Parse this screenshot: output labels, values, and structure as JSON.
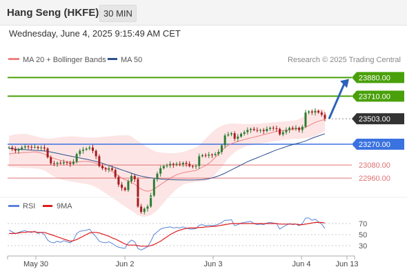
{
  "header": {
    "title": "Hang Seng (HKFE)",
    "timeframe": "30 MIN",
    "datetime": "Wednesday, June 4, 2025 9:15:49 AM CET"
  },
  "legend": {
    "ma20": "MA 20 + Bollinger Bands",
    "ma50": "MA 50",
    "credit": "Research © 2025 Trading Central",
    "rsi": "RSI",
    "rsi_ma": "9MA"
  },
  "colors": {
    "up": "#2e7d32",
    "down": "#a61c1c",
    "ma20": "#f08080",
    "ma50": "#2b4f8c",
    "band": "#fde0e0",
    "target": "#4aa00a",
    "pivot": "#3a72e0",
    "support": "#e07070",
    "current": "#333333",
    "arrow": "#2b63b8",
    "rsi": "#5b82d8",
    "rsi_ma": "#dd1c1c"
  },
  "chart_data": [
    {
      "type": "candlestick",
      "ylim": [
        22790,
        23990
      ],
      "x_ticks": [
        "May 30",
        "Jun 2",
        "Jun 3",
        "Jun 4",
        "Jun 13"
      ],
      "levels": [
        {
          "value": 23880,
          "label": "23880.00",
          "kind": "target"
        },
        {
          "value": 23710,
          "label": "23710.00",
          "kind": "target"
        },
        {
          "value": 23503,
          "label": "23503.00",
          "kind": "current"
        },
        {
          "value": 23270,
          "label": "23270.00",
          "kind": "pivot"
        },
        {
          "value": 23080,
          "label": "23080.00",
          "kind": "support"
        },
        {
          "value": 22960,
          "label": "22960.00",
          "kind": "support"
        }
      ],
      "close": [
        23240,
        23225,
        23210,
        23225,
        23240,
        23250,
        23245,
        23240,
        23245,
        23235,
        23240,
        23230,
        23150,
        23095,
        23090,
        23100,
        23095,
        23105,
        23100,
        23090,
        23110,
        23180,
        23210,
        23220,
        23230,
        23240,
        23210,
        23160,
        23070,
        23050,
        23040,
        23050,
        23035,
        22970,
        22900,
        22870,
        22850,
        22930,
        22980,
        22950,
        22700,
        22650,
        22680,
        22700,
        22800,
        22950,
        23000,
        23050,
        23070,
        23075,
        23090,
        23080,
        23090,
        23085,
        23100,
        23090,
        23070,
        23065,
        23070,
        23160,
        23170,
        23165,
        23175,
        23170,
        23180,
        23200,
        23260,
        23350,
        23360,
        23370,
        23320,
        23340,
        23365,
        23380,
        23400,
        23410,
        23400,
        23395,
        23400,
        23390,
        23410,
        23420,
        23415,
        23410,
        23360,
        23380,
        23400,
        23420,
        23410,
        23420,
        23400,
        23430,
        23560,
        23570,
        23560,
        23575,
        23560,
        23540,
        23503
      ],
      "ma20": [
        23180,
        23185,
        23188,
        23190,
        23192,
        23194,
        23196,
        23198,
        23200,
        23196,
        23190,
        23180,
        23165,
        23150,
        23140,
        23130,
        23122,
        23115,
        23110,
        23105,
        23105,
        23108,
        23110,
        23112,
        23112,
        23110,
        23105,
        23095,
        23080,
        23065,
        23050,
        23035,
        23020,
        23000,
        22980,
        22960,
        22945,
        22935,
        22920,
        22905,
        22880,
        22860,
        22845,
        22840,
        22845,
        22860,
        22880,
        22900,
        22920,
        22940,
        22960,
        22975,
        22990,
        23000,
        23010,
        23015,
        23020,
        23025,
        23030,
        23045,
        23060,
        23075,
        23095,
        23120,
        23150,
        23180,
        23210,
        23240,
        23260,
        23275,
        23285,
        23295,
        23305,
        23312,
        23320,
        23328,
        23335,
        23342,
        23350,
        23358,
        23365,
        23372,
        23380,
        23388,
        23390,
        23395,
        23398,
        23400,
        23405,
        23410,
        23412,
        23415,
        23425,
        23440,
        23455,
        23470,
        23480,
        23490,
        23495
      ],
      "upper": [
        23345,
        23355,
        23360,
        23362,
        23364,
        23365,
        23360,
        23352,
        23345,
        23338,
        23332,
        23325,
        23320,
        23320,
        23325,
        23330,
        23335,
        23338,
        23340,
        23342,
        23342,
        23340,
        23338,
        23335,
        23332,
        23330,
        23330,
        23332,
        23335,
        23338,
        23340,
        23342,
        23345,
        23348,
        23350,
        23350,
        23352,
        23352,
        23340,
        23320,
        23300,
        23280,
        23260,
        23240,
        23225,
        23210,
        23200,
        23195,
        23192,
        23190,
        23188,
        23188,
        23190,
        23195,
        23200,
        23210,
        23220,
        23230,
        23240,
        23260,
        23290,
        23320,
        23350,
        23380,
        23405,
        23425,
        23440,
        23450,
        23455,
        23460,
        23460,
        23458,
        23456,
        23455,
        23455,
        23455,
        23456,
        23458,
        23460,
        23462,
        23465,
        23468,
        23470,
        23472,
        23475,
        23478,
        23480,
        23482,
        23485,
        23490,
        23500,
        23515,
        23540,
        23560,
        23575,
        23585,
        23590,
        23590,
        23585
      ],
      "lower": [
        23060,
        23060,
        23058,
        23055,
        23052,
        23050,
        23050,
        23050,
        23048,
        23045,
        23040,
        23030,
        23010,
        22990,
        22975,
        22960,
        22950,
        22940,
        22935,
        22930,
        22925,
        22920,
        22915,
        22910,
        22905,
        22900,
        22890,
        22875,
        22860,
        22840,
        22820,
        22800,
        22780,
        22760,
        22740,
        22720,
        22700,
        22680,
        22660,
        22640,
        22620,
        22610,
        22605,
        22610,
        22620,
        22640,
        22665,
        22700,
        22735,
        22770,
        22800,
        22830,
        22860,
        22880,
        22900,
        22910,
        22915,
        22920,
        22925,
        22930,
        22930,
        22935,
        22945,
        22960,
        22990,
        23030,
        23060,
        23100,
        23140,
        23170,
        23195,
        23215,
        23230,
        23245,
        23255,
        23260,
        23265,
        23270,
        23275,
        23280,
        23285,
        23290,
        23295,
        23300,
        23305,
        23310,
        23312,
        23315,
        23318,
        23320,
        23320,
        23322,
        23325,
        23328,
        23335,
        23345,
        23360,
        23375,
        23390
      ],
      "ma50": [
        23230,
        23228,
        23226,
        23224,
        23222,
        23220,
        23218,
        23216,
        23214,
        23212,
        23210,
        23208,
        23204,
        23198,
        23192,
        23186,
        23180,
        23174,
        23168,
        23162,
        23156,
        23150,
        23144,
        23138,
        23132,
        23126,
        23120,
        23112,
        23104,
        23095,
        23085,
        23075,
        23065,
        23055,
        23045,
        23035,
        23025,
        23015,
        23005,
        22995,
        22985,
        22978,
        22972,
        22966,
        22962,
        22958,
        22955,
        22952,
        22950,
        22948,
        22946,
        22945,
        22944,
        22943,
        22943,
        22942,
        22942,
        22942,
        22943,
        22944,
        22946,
        22950,
        22955,
        22962,
        22970,
        22980,
        22992,
        23005,
        23020,
        23035,
        23050,
        23065,
        23080,
        23095,
        23110,
        23122,
        23134,
        23146,
        23158,
        23170,
        23182,
        23194,
        23206,
        23218,
        23228,
        23238,
        23248,
        23258,
        23266,
        23274,
        23282,
        23290,
        23300,
        23312,
        23324,
        23336,
        23346,
        23356,
        23366
      ],
      "rsi_ylim": [
        15,
        85
      ],
      "rsi_ticks": [
        70,
        50,
        30
      ],
      "rsi": [
        58,
        55,
        52,
        54,
        56,
        57,
        55,
        54,
        56,
        52,
        54,
        50,
        40,
        36,
        35,
        38,
        36,
        39,
        37,
        35,
        40,
        52,
        56,
        57,
        58,
        60,
        52,
        46,
        38,
        36,
        35,
        37,
        34,
        30,
        27,
        26,
        25,
        35,
        40,
        37,
        25,
        22,
        25,
        28,
        38,
        50,
        55,
        60,
        62,
        63,
        64,
        62,
        63,
        62,
        64,
        62,
        60,
        60,
        61,
        67,
        68,
        66,
        67,
        66,
        67,
        69,
        72,
        76,
        76,
        77,
        66,
        68,
        71,
        72,
        73,
        74,
        70,
        68,
        69,
        68,
        71,
        72,
        71,
        70,
        60,
        64,
        67,
        70,
        68,
        69,
        66,
        70,
        80,
        80,
        76,
        78,
        73,
        69,
        61
      ],
      "rsi_ma": [
        52,
        52,
        52,
        53,
        54,
        54,
        55,
        55,
        55,
        54,
        54,
        54,
        52,
        50,
        48,
        46,
        44,
        42,
        40,
        38,
        39,
        41,
        44,
        47,
        50,
        53,
        54,
        54,
        53,
        51,
        49,
        47,
        44,
        42,
        39,
        36,
        33,
        31,
        31,
        31,
        30,
        29,
        29,
        29,
        30,
        32,
        35,
        38,
        42,
        46,
        50,
        53,
        56,
        58,
        60,
        61,
        62,
        62,
        62,
        63,
        63,
        64,
        64,
        65,
        65,
        66,
        67,
        68,
        69,
        70,
        70,
        70,
        70,
        70,
        70,
        70,
        70,
        70,
        70,
        70,
        70,
        70,
        70,
        70,
        69,
        69,
        69,
        69,
        69,
        69,
        68,
        68,
        69,
        70,
        71,
        72,
        72,
        72,
        71
      ]
    }
  ]
}
